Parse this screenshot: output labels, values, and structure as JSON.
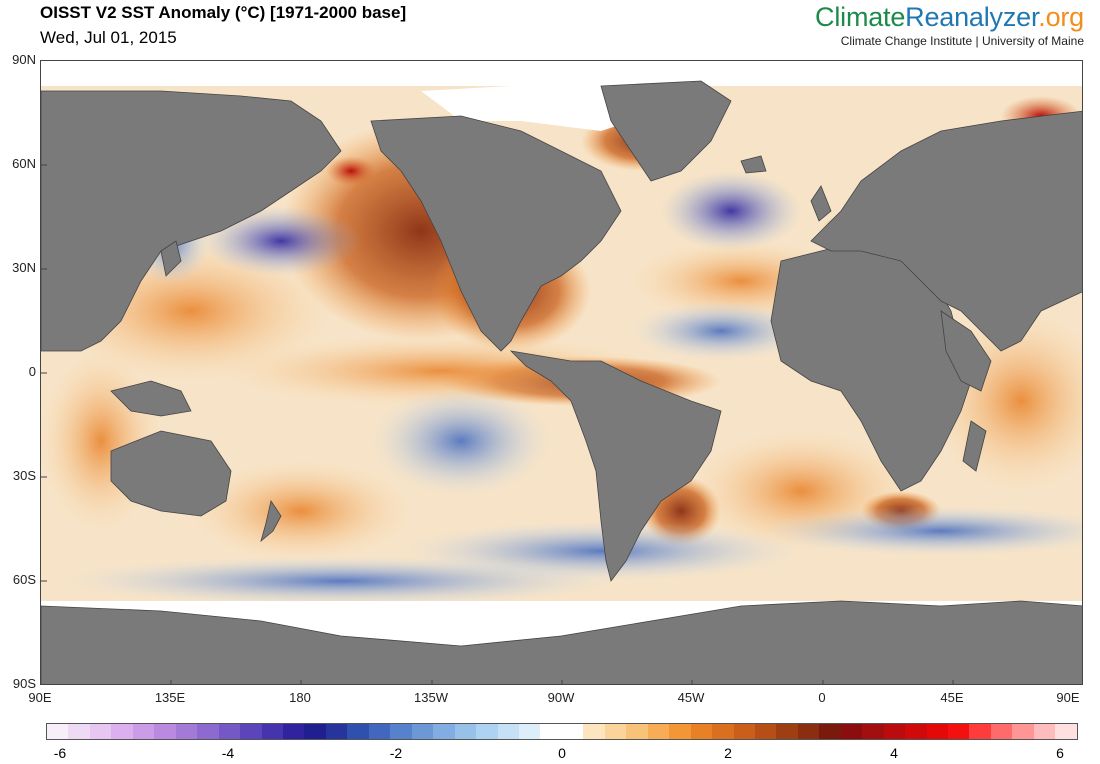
{
  "header": {
    "title": "OISST V2 SST Anomaly (°C) [1971-2000 base]",
    "date": "Wed, Jul 01, 2015"
  },
  "brand": {
    "part1": "Climate",
    "part2": "Reanalyzer",
    "part3": ".org",
    "subtitle": "Climate Change Institute | University of Maine",
    "colors": {
      "part1": "#1d8a4a",
      "part2": "#1f78b4",
      "part3": "#f28e1c"
    }
  },
  "map": {
    "projection": "equirectangular",
    "lat_labels": [
      "90N",
      "60N",
      "30N",
      "0",
      "30S",
      "60S",
      "90S"
    ],
    "lon_labels": [
      "90E",
      "135E",
      "180",
      "135W",
      "90W",
      "45W",
      "0",
      "45E",
      "90E"
    ],
    "land_color": "#7a7a7a",
    "ice_color": "#ffffff",
    "variable": "sea surface temperature anomaly"
  },
  "colorbar": {
    "labels": [
      "-6",
      "-4",
      "-2",
      "0",
      "2",
      "4",
      "6"
    ],
    "colors": [
      "#f6eef9",
      "#efdaf5",
      "#e8c6f2",
      "#dcb0ee",
      "#cc9ce8",
      "#b98ae0",
      "#a37ad8",
      "#8c6ad0",
      "#7458c6",
      "#5c45bb",
      "#4634ae",
      "#2f239f",
      "#1f1f8f",
      "#27349c",
      "#3050ad",
      "#4168be",
      "#5681cc",
      "#6c98d8",
      "#82ade2",
      "#98c1ea",
      "#aed2f1",
      "#c6e1f6",
      "#dceef9",
      "#ffffff",
      "#ffffff",
      "#fde5c0",
      "#fbd49c",
      "#f9c279",
      "#f7ac55",
      "#f39636",
      "#e88026",
      "#d96f1f",
      "#c95f1a",
      "#b54e17",
      "#9e3e13",
      "#8a2d10",
      "#7a1a0c",
      "#8c0d0d",
      "#a30e0e",
      "#ba0c0c",
      "#d00a0a",
      "#e40808",
      "#f51010",
      "#ff3c3c",
      "#ff6b6b",
      "#ff9595",
      "#ffbcbc",
      "#ffe0e0"
    ]
  }
}
